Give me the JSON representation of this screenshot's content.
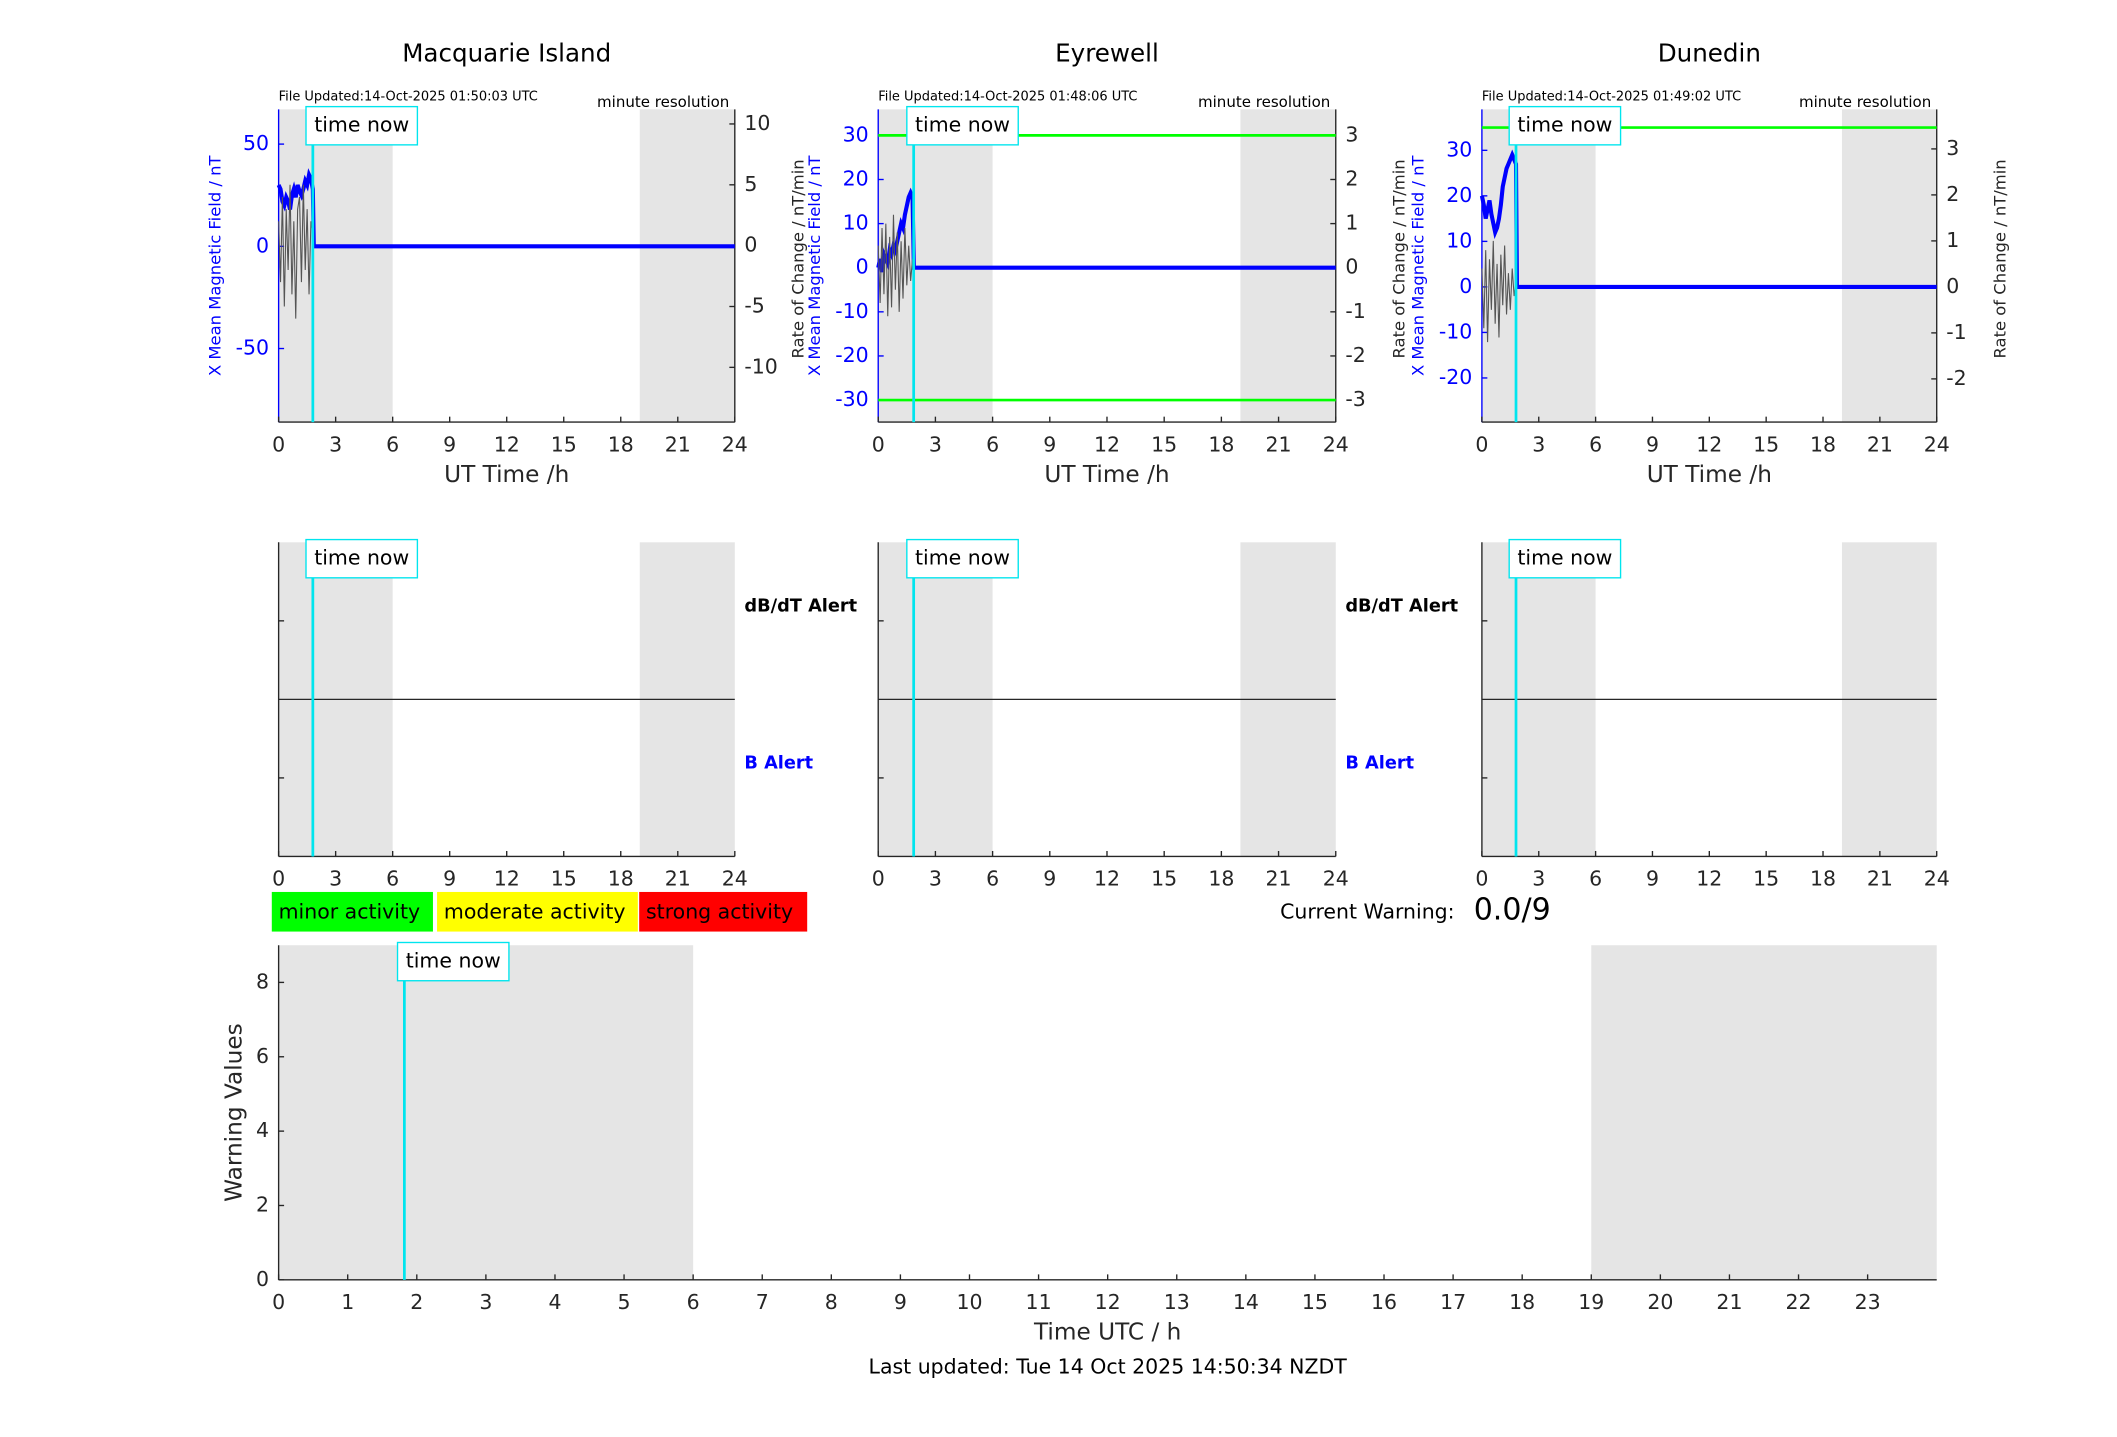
{
  "chart_data": [
    {
      "type": "line",
      "title": "Macquarie Island",
      "file_updated": "File Updated:14-Oct-2025 01:50:03 UTC",
      "resolution": "minute resolution",
      "ylabel": "X Mean Magnetic Field / nT",
      "y2label": "Rate of Change / nT/min",
      "xlabel": "UT Time /h",
      "ycolor": "#0000ff",
      "xlim": [
        0,
        24
      ],
      "xticks": [
        0,
        3,
        6,
        9,
        12,
        15,
        18,
        21,
        24
      ],
      "ylim": [
        -86,
        67
      ],
      "yticks": [
        -50,
        0,
        50
      ],
      "y2lim": [
        -14.5,
        11.2
      ],
      "y2ticks": [
        -10,
        -5,
        0,
        5,
        10
      ],
      "shaded": [
        [
          0,
          6
        ],
        [
          19,
          24
        ]
      ],
      "time_now": {
        "value": 1.8,
        "label": "time now"
      },
      "series": [
        {
          "color": "#0000ff",
          "x": [
            0,
            0.1,
            0.2,
            0.3,
            0.4,
            0.5,
            0.6,
            0.7,
            0.8,
            0.9,
            1.0,
            1.1,
            1.2,
            1.3,
            1.4,
            1.5,
            1.6,
            1.7,
            1.8,
            1.85,
            24
          ],
          "values": [
            30,
            28,
            22,
            20,
            24,
            22,
            18,
            25,
            28,
            24,
            30,
            27,
            25,
            28,
            32,
            30,
            35,
            33,
            28,
            0,
            0
          ]
        },
        {
          "color": "#555555",
          "axis": "y2",
          "x": [
            0,
            0.1,
            0.2,
            0.3,
            0.4,
            0.5,
            0.6,
            0.7,
            0.8,
            0.9,
            1.0,
            1.1,
            1.2,
            1.3,
            1.4,
            1.5,
            1.6,
            1.7,
            1.8
          ],
          "values": [
            2,
            -3,
            4,
            -5,
            3,
            -2,
            5,
            -4,
            2,
            -6,
            3,
            4,
            -3,
            5,
            -2,
            3,
            -4,
            2,
            1
          ]
        }
      ]
    },
    {
      "type": "line",
      "title": "Eyrewell",
      "file_updated": "File Updated:14-Oct-2025 01:48:06 UTC",
      "resolution": "minute resolution",
      "ylabel": "X Mean Magnetic Field / nT",
      "y2label": "Rate of Change / nT/min",
      "xlabel": "UT Time /h",
      "ycolor": "#0000ff",
      "xlim": [
        0,
        24
      ],
      "xticks": [
        0,
        3,
        6,
        9,
        12,
        15,
        18,
        21,
        24
      ],
      "ylim": [
        -35,
        35.9
      ],
      "yticks": [
        -30,
        -20,
        -10,
        0,
        10,
        20,
        30
      ],
      "y2lim": [
        -3.5,
        3.59
      ],
      "y2ticks": [
        -3,
        -2,
        -1,
        0,
        1,
        2,
        3
      ],
      "shaded": [
        [
          0,
          6
        ],
        [
          19,
          24
        ]
      ],
      "time_now": {
        "value": 1.86,
        "label": "time now"
      },
      "reference_lines": {
        "color": "#00ff00",
        "values": [
          30,
          -30
        ]
      },
      "series": [
        {
          "color": "#0000ff",
          "x": [
            0,
            0.1,
            0.2,
            0.3,
            0.4,
            0.5,
            0.6,
            0.7,
            0.8,
            0.9,
            1.0,
            1.1,
            1.2,
            1.3,
            1.4,
            1.5,
            1.6,
            1.7,
            1.8,
            1.87,
            24
          ],
          "values": [
            0,
            2,
            -1,
            3,
            2,
            1,
            4,
            3,
            5,
            4,
            6,
            8,
            10,
            9,
            12,
            14,
            16,
            17,
            16,
            0,
            0
          ]
        },
        {
          "color": "#555555",
          "axis": "y2",
          "x": [
            0,
            0.1,
            0.2,
            0.3,
            0.4,
            0.5,
            0.6,
            0.7,
            0.8,
            0.9,
            1.0,
            1.1,
            1.2,
            1.3,
            1.4,
            1.5,
            1.6,
            1.7,
            1.8
          ],
          "values": [
            0.5,
            -0.8,
            0.9,
            -0.6,
            1.0,
            -1.1,
            0.7,
            -0.9,
            1.2,
            -0.5,
            0.8,
            -1.0,
            0.6,
            -0.7,
            0.9,
            -0.4,
            0.5,
            -0.3,
            0.2
          ]
        }
      ]
    },
    {
      "type": "line",
      "title": "Dunedin",
      "file_updated": "File Updated:14-Oct-2025 01:49:02 UTC",
      "resolution": "minute resolution",
      "ylabel": "X Mean Magnetic Field / nT",
      "y2label": "Rate of Change / nT/min",
      "xlabel": "UT Time /h",
      "ycolor": "#0000ff",
      "xlim": [
        0,
        24
      ],
      "xticks": [
        0,
        3,
        6,
        9,
        12,
        15,
        18,
        21,
        24
      ],
      "ylim": [
        -29.7,
        39
      ],
      "yticks": [
        -20,
        -10,
        0,
        10,
        20,
        30
      ],
      "y2lim": [
        -2.94,
        3.86
      ],
      "y2ticks": [
        -2,
        -1,
        0,
        1,
        2,
        3
      ],
      "shaded": [
        [
          0,
          6
        ],
        [
          19,
          24
        ]
      ],
      "time_now": {
        "value": 1.8,
        "label": "time now"
      },
      "reference_lines": {
        "color": "#00ff00",
        "values": [
          35
        ]
      },
      "series": [
        {
          "color": "#0000ff",
          "x": [
            0,
            0.1,
            0.2,
            0.3,
            0.4,
            0.5,
            0.6,
            0.7,
            0.8,
            0.9,
            1.0,
            1.1,
            1.2,
            1.3,
            1.4,
            1.5,
            1.6,
            1.7,
            1.8,
            1.85,
            24
          ],
          "values": [
            20,
            18,
            15,
            17,
            19,
            16,
            14,
            12,
            13,
            15,
            18,
            22,
            24,
            26,
            27,
            28,
            29,
            28,
            27,
            0,
            0
          ]
        },
        {
          "color": "#555555",
          "axis": "y2",
          "x": [
            0,
            0.1,
            0.2,
            0.3,
            0.4,
            0.5,
            0.6,
            0.7,
            0.8,
            0.9,
            1.0,
            1.1,
            1.2,
            1.3,
            1.4,
            1.5,
            1.6,
            1.7,
            1.8
          ],
          "values": [
            0.4,
            -0.9,
            0.8,
            -1.2,
            0.6,
            -0.5,
            1.0,
            -0.8,
            0.5,
            -1.1,
            0.7,
            -0.4,
            0.9,
            -0.6,
            0.3,
            -0.5,
            0.4,
            -0.2,
            0.1
          ]
        }
      ]
    },
    {
      "type": "alert",
      "xlim": [
        0,
        24
      ],
      "xticks": [
        0,
        3,
        6,
        9,
        12,
        15,
        18,
        21,
        24
      ],
      "shaded": [
        [
          0,
          6
        ],
        [
          19,
          24
        ]
      ],
      "time_now": {
        "value": 1.8,
        "label": "time now"
      },
      "labels": [
        {
          "text": "dB/dT Alert",
          "color": "#000000"
        },
        {
          "text": "B Alert",
          "color": "#0000ff"
        }
      ]
    },
    {
      "type": "alert",
      "xlim": [
        0,
        24
      ],
      "xticks": [
        0,
        3,
        6,
        9,
        12,
        15,
        18,
        21,
        24
      ],
      "shaded": [
        [
          0,
          6
        ],
        [
          19,
          24
        ]
      ],
      "time_now": {
        "value": 1.86,
        "label": "time now"
      },
      "labels": [
        {
          "text": "dB/dT Alert",
          "color": "#000000"
        },
        {
          "text": "B Alert",
          "color": "#0000ff"
        }
      ]
    },
    {
      "type": "alert",
      "xlim": [
        0,
        24
      ],
      "xticks": [
        0,
        3,
        6,
        9,
        12,
        15,
        18,
        21,
        24
      ],
      "shaded": [
        [
          0,
          6
        ],
        [
          19,
          24
        ]
      ],
      "time_now": {
        "value": 1.8,
        "label": "time now"
      }
    },
    {
      "type": "line",
      "ylabel": "Warning Values",
      "xlabel": "Time UTC / h",
      "xlim": [
        0,
        24
      ],
      "xticks": [
        0,
        1,
        2,
        3,
        4,
        5,
        6,
        7,
        8,
        9,
        10,
        11,
        12,
        13,
        14,
        15,
        16,
        17,
        18,
        19,
        20,
        21,
        22,
        23
      ],
      "ylim": [
        0,
        9
      ],
      "yticks": [
        0,
        2,
        4,
        6,
        8
      ],
      "shaded": [
        [
          0,
          6
        ],
        [
          19,
          24
        ]
      ],
      "time_now": {
        "value": 1.82,
        "label": "time now"
      }
    }
  ],
  "activity_scale": [
    {
      "label": "minor activity",
      "color": "#00ff00"
    },
    {
      "label": "moderate activity",
      "color": "#ffff00"
    },
    {
      "label": "strong activity",
      "color": "#ff0000"
    }
  ],
  "current_warning": {
    "label": "Current Warning:",
    "value": "0.0/9"
  },
  "footer": "Last updated: Tue 14 Oct 2025 14:50:34 NZDT"
}
